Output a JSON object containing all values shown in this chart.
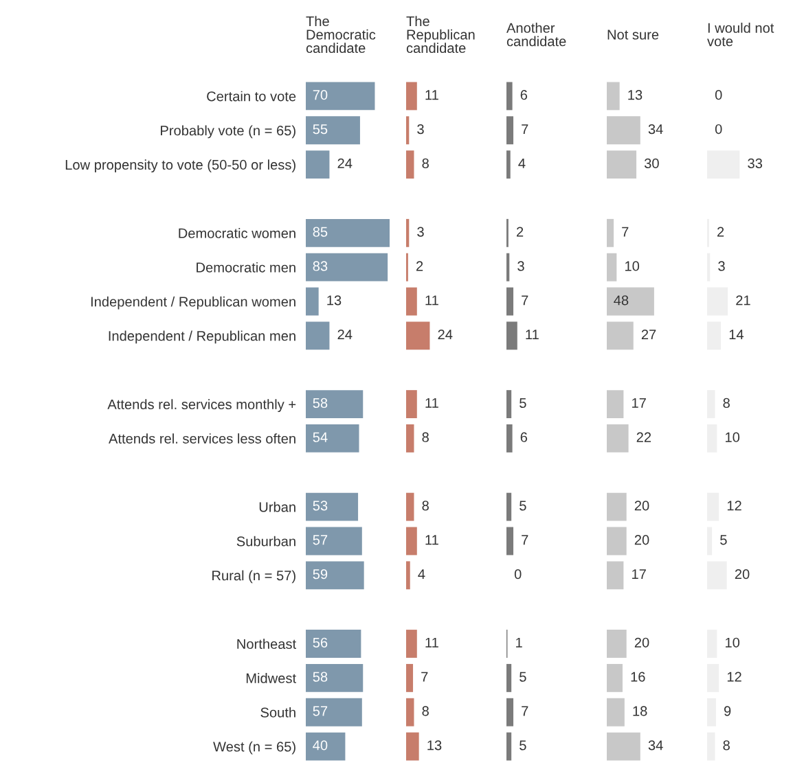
{
  "chart_data": [
    {
      "type": "bar",
      "orientation": "horizontal",
      "title": "The\nDemocratic\ncandidate",
      "data_labels": true,
      "color": "#7f98ac",
      "categories": [
        "Certain to vote",
        "Probably vote (n = 65)",
        "Low propensity to vote (50-50 or less)",
        null,
        "Democratic women",
        "Democratic men",
        "Independent / Republican women",
        "Independent / Republican men",
        null,
        "Attends rel. services monthly +",
        "Attends rel. services less often",
        null,
        "Urban",
        "Suburban",
        "Rural (n = 57)",
        null,
        "Northeast",
        "Midwest",
        "South",
        "West (n = 65)"
      ],
      "values": [
        70,
        55,
        24,
        null,
        85,
        83,
        13,
        24,
        null,
        58,
        54,
        null,
        53,
        57,
        59,
        null,
        56,
        58,
        57,
        40
      ]
    },
    {
      "type": "bar",
      "orientation": "horizontal",
      "title": "The\nRepublican\ncandidate",
      "data_labels": true,
      "color": "#c77d6b",
      "values": [
        11,
        3,
        8,
        null,
        3,
        2,
        11,
        24,
        null,
        11,
        8,
        null,
        8,
        11,
        4,
        null,
        11,
        7,
        8,
        13
      ]
    },
    {
      "type": "bar",
      "orientation": "horizontal",
      "title": "Another\ncandidate",
      "data_labels": true,
      "color": "#7b7b7b",
      "values": [
        6,
        7,
        4,
        null,
        2,
        3,
        7,
        11,
        null,
        5,
        6,
        null,
        5,
        7,
        0,
        null,
        1,
        5,
        7,
        5
      ]
    },
    {
      "type": "bar",
      "orientation": "horizontal",
      "title": "Not sure",
      "data_labels": true,
      "color": "#c8c8c8",
      "values": [
        13,
        34,
        30,
        null,
        7,
        10,
        48,
        27,
        null,
        17,
        22,
        null,
        20,
        20,
        17,
        null,
        20,
        16,
        18,
        34
      ]
    },
    {
      "type": "bar",
      "orientation": "horizontal",
      "title": "I would not\nvote",
      "data_labels": true,
      "color": "#efefef",
      "values": [
        0,
        0,
        33,
        null,
        2,
        3,
        21,
        14,
        null,
        8,
        10,
        null,
        12,
        5,
        20,
        null,
        10,
        12,
        9,
        8
      ]
    }
  ]
}
